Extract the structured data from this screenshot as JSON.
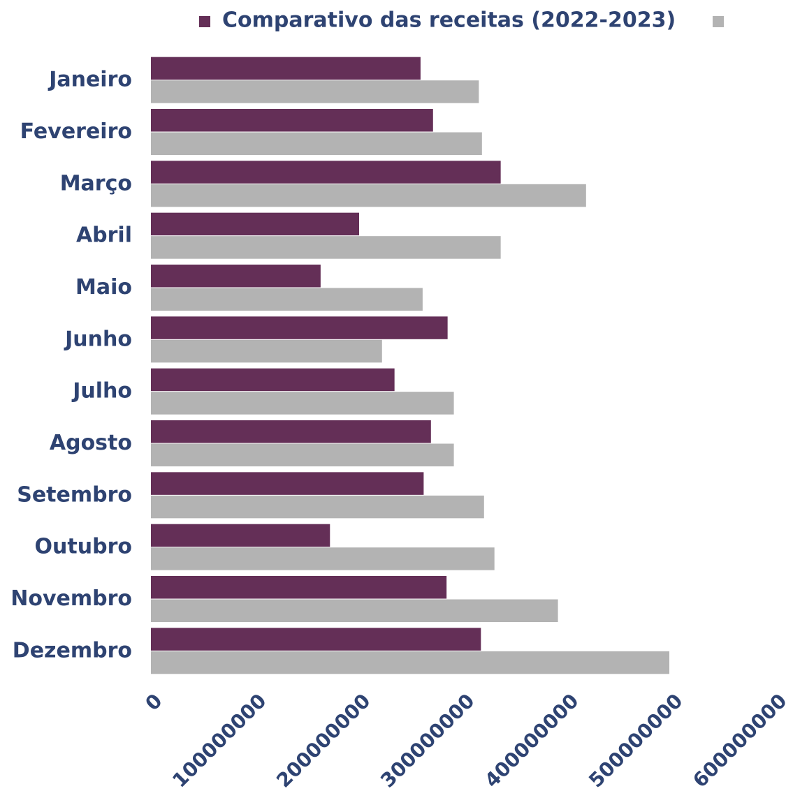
{
  "chart_data": {
    "type": "barh",
    "categories": [
      "Janeiro",
      "Fevereiro",
      "Março",
      "Abril",
      "Maio",
      "Junho",
      "Julho",
      "Agosto",
      "Setembro",
      "Outubro",
      "Novembro",
      "Dezembro"
    ],
    "series": [
      {
        "name": "Comparativo das receitas (2022-2023)",
        "color": "#642f57",
        "values": [
          259000000,
          271000000,
          336000000,
          200000000,
          163000000,
          285000000,
          234000000,
          269000000,
          262000000,
          172000000,
          284000000,
          317000000
        ]
      },
      {
        "color": "#b3b3b3",
        "values": [
          315000000,
          318000000,
          418000000,
          336000000,
          261000000,
          222000000,
          291000000,
          291000000,
          320000000,
          330000000,
          391000000,
          498000000
        ]
      }
    ],
    "xlim": [
      0,
      600000000
    ],
    "xticks": [
      0,
      100000000,
      200000000,
      300000000,
      400000000,
      500000000,
      600000000
    ],
    "grid": false,
    "legend": "top"
  }
}
